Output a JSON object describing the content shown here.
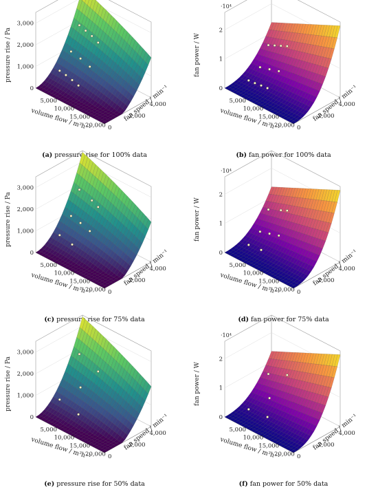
{
  "chart_data": [
    {
      "type": "surface",
      "id": "a",
      "caption_letter": "(a)",
      "caption_text": "pressure rise for 100% data",
      "zlabel": "pressure rise / Pa",
      "xlabel": "volume flow / m³h⁻¹",
      "ylabel": "fan speed / min⁻¹",
      "xticks": [
        "5,000",
        "10,000",
        "15,000",
        "20,000"
      ],
      "yticks": [
        "0",
        "2,000",
        "4,000"
      ],
      "zticks": [
        "0",
        "1,000",
        "2,000",
        "3,000"
      ],
      "zmax": 3500,
      "multiplier": "",
      "colormap": "viridis",
      "points": [
        {
          "x": 4000,
          "y": 3000,
          "z": 2400
        },
        {
          "x": 6000,
          "y": 3000,
          "z": 2300
        },
        {
          "x": 8000,
          "y": 3000,
          "z": 2200
        },
        {
          "x": 10000,
          "y": 3000,
          "z": 2050
        },
        {
          "x": 4000,
          "y": 2200,
          "z": 1400
        },
        {
          "x": 7000,
          "y": 2200,
          "z": 1300
        },
        {
          "x": 10000,
          "y": 2200,
          "z": 1150
        },
        {
          "x": 3000,
          "y": 1400,
          "z": 650
        },
        {
          "x": 5000,
          "y": 1400,
          "z": 600
        },
        {
          "x": 7000,
          "y": 1400,
          "z": 520
        },
        {
          "x": 9000,
          "y": 1400,
          "z": 420
        }
      ]
    },
    {
      "type": "surface",
      "id": "b",
      "caption_letter": "(b)",
      "caption_text": "fan power for 100% data",
      "zlabel": "fan power / W",
      "xlabel": "volume flow / m³h⁻¹",
      "ylabel": "fan speed / min⁻¹",
      "xticks": [
        "5,000",
        "10,000",
        "15,000",
        "20,000"
      ],
      "yticks": [
        "0",
        "2,000",
        "4,000"
      ],
      "zticks": [
        "0",
        "1",
        "2"
      ],
      "zmax": 2.6,
      "multiplier": "·10⁴",
      "colormap": "plasma",
      "points": [
        {
          "x": 4000,
          "y": 3000,
          "z": 1.1
        },
        {
          "x": 6000,
          "y": 3000,
          "z": 1.2
        },
        {
          "x": 8000,
          "y": 3000,
          "z": 1.3
        },
        {
          "x": 10000,
          "y": 3000,
          "z": 1.4
        },
        {
          "x": 4000,
          "y": 2200,
          "z": 0.5
        },
        {
          "x": 7000,
          "y": 2200,
          "z": 0.6
        },
        {
          "x": 10000,
          "y": 2200,
          "z": 0.7
        },
        {
          "x": 3000,
          "y": 1400,
          "z": 0.15
        },
        {
          "x": 5000,
          "y": 1400,
          "z": 0.17
        },
        {
          "x": 7000,
          "y": 1400,
          "z": 0.2
        },
        {
          "x": 9000,
          "y": 1400,
          "z": 0.22
        }
      ]
    },
    {
      "type": "surface",
      "id": "c",
      "caption_letter": "(c)",
      "caption_text": "pressure rise for 75% data",
      "zlabel": "pressure rise / Pa",
      "xlabel": "volume flow / m³h⁻¹",
      "ylabel": "fan speed / min⁻¹",
      "xticks": [
        "5,000",
        "10,000",
        "15,000",
        "20,000"
      ],
      "yticks": [
        "0",
        "2,000",
        "4,000"
      ],
      "zticks": [
        "0",
        "1,000",
        "2,000",
        "3,000"
      ],
      "zmax": 3500,
      "multiplier": "",
      "colormap": "viridis",
      "points": [
        {
          "x": 4000,
          "y": 3000,
          "z": 2400
        },
        {
          "x": 8000,
          "y": 3000,
          "z": 2200
        },
        {
          "x": 10000,
          "y": 3000,
          "z": 2050
        },
        {
          "x": 4000,
          "y": 2200,
          "z": 1400
        },
        {
          "x": 7000,
          "y": 2200,
          "z": 1300
        },
        {
          "x": 10000,
          "y": 2200,
          "z": 1150
        },
        {
          "x": 3000,
          "y": 1400,
          "z": 650
        },
        {
          "x": 7000,
          "y": 1400,
          "z": 520
        }
      ]
    },
    {
      "type": "surface",
      "id": "d",
      "caption_letter": "(d)",
      "caption_text": "fan power for 75% data",
      "zlabel": "fan power / W",
      "xlabel": "volume flow / m³h⁻¹",
      "ylabel": "fan speed / min⁻¹",
      "xticks": [
        "5,000",
        "10,000",
        "15,000",
        "20,000"
      ],
      "yticks": [
        "0",
        "2,000",
        "4,000"
      ],
      "zticks": [
        "0",
        "1",
        "2"
      ],
      "zmax": 2.6,
      "multiplier": "·10⁴",
      "colormap": "plasma",
      "points": [
        {
          "x": 4000,
          "y": 3000,
          "z": 1.1
        },
        {
          "x": 8000,
          "y": 3000,
          "z": 1.3
        },
        {
          "x": 10000,
          "y": 3000,
          "z": 1.4
        },
        {
          "x": 4000,
          "y": 2200,
          "z": 0.5
        },
        {
          "x": 7000,
          "y": 2200,
          "z": 0.6
        },
        {
          "x": 10000,
          "y": 2200,
          "z": 0.7
        },
        {
          "x": 3000,
          "y": 1400,
          "z": 0.15
        },
        {
          "x": 7000,
          "y": 1400,
          "z": 0.2
        }
      ]
    },
    {
      "type": "surface",
      "id": "e",
      "caption_letter": "(e)",
      "caption_text": "pressure rise for 50% data",
      "zlabel": "pressure rise / Pa",
      "xlabel": "volume flow / m³h⁻¹",
      "ylabel": "fan speed / min⁻¹",
      "xticks": [
        "5,000",
        "10,000",
        "15,000",
        "20,000"
      ],
      "yticks": [
        "0",
        "2,000",
        "4,000"
      ],
      "zticks": [
        "0",
        "1,000",
        "2,000",
        "3,000"
      ],
      "zmax": 3500,
      "multiplier": "",
      "colormap": "viridis",
      "points": [
        {
          "x": 4000,
          "y": 3000,
          "z": 2400
        },
        {
          "x": 10000,
          "y": 3000,
          "z": 2050
        },
        {
          "x": 7000,
          "y": 2200,
          "z": 1300
        },
        {
          "x": 3000,
          "y": 1400,
          "z": 650
        },
        {
          "x": 9000,
          "y": 1400,
          "z": 420
        }
      ]
    },
    {
      "type": "surface",
      "id": "f",
      "caption_letter": "(f)",
      "caption_text": "fan power for 50% data",
      "zlabel": "fan power / W",
      "xlabel": "volume flow / m³h⁻¹",
      "ylabel": "fan speed / min⁻¹",
      "xticks": [
        "5,000",
        "10,000",
        "15,000",
        "20,000"
      ],
      "yticks": [
        "0",
        "2,000",
        "4,000"
      ],
      "zticks": [
        "0",
        "1",
        "2"
      ],
      "zmax": 2.6,
      "multiplier": "·10⁴",
      "colormap": "plasma",
      "points": [
        {
          "x": 4000,
          "y": 3000,
          "z": 1.1
        },
        {
          "x": 10000,
          "y": 3000,
          "z": 1.4
        },
        {
          "x": 7000,
          "y": 2200,
          "z": 0.6
        },
        {
          "x": 3000,
          "y": 1400,
          "z": 0.15
        },
        {
          "x": 9000,
          "y": 1400,
          "z": 0.22
        }
      ]
    }
  ]
}
